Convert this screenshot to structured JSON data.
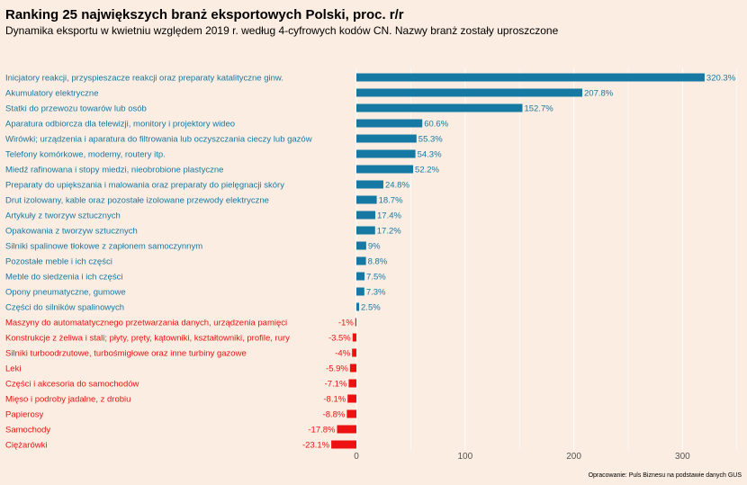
{
  "header": {
    "title": "Ranking 25 największych branż eksportowych Polski, proc. r/r",
    "subtitle": "Dynamika eksportu w kwietniu względem 2019 r. według 4-cyfrowych kodów CN. Nazwy branż zostały uproszczone"
  },
  "caption": "Opracowanie: Puls Biznesu na podstawie danych GUS",
  "colors": {
    "positive": "#1579a3",
    "negative": "#ee1111",
    "background": "#fbede1",
    "grid": "#ffffff"
  },
  "chart_data": {
    "type": "bar",
    "orientation": "horizontal",
    "title": "Ranking 25 największych branż eksportowych Polski, proc. r/r",
    "subtitle": "Dynamika eksportu w kwietniu względem 2019 r. według 4-cyfrowych kodów CN. Nazwy branż zostały uproszczone",
    "xlabel": "",
    "ylabel": "",
    "xlim": [
      -25,
      340
    ],
    "xticks": [
      0,
      100,
      200,
      300
    ],
    "grid": true,
    "legend": "none",
    "categories": [
      "Inicjatory reakcji, przyspieszacze reakcji oraz preparaty katalityczne ginw.",
      "Akumulatory elektryczne",
      "Statki do przewozu towarów lub osób",
      "Aparatura odbiorcza dla telewizji, monitory i projektory wideo",
      "Wirówki; urządzenia i aparatura do filtrowania lub oczyszczania cieczy lub gazów",
      "Telefony komórkowe, modemy, routery itp.",
      "Miedź rafinowana i stopy miedzi, nieobrobione plastyczne",
      "Preparaty do upiększania i malowania oraz preparaty do pielęgnacji skóry",
      "Drut izolowany, kable oraz pozostałe izolowane przewody elektryczne",
      "Artykuły z tworzyw sztucznych",
      "Opakowania z tworzyw sztucznych",
      "Silniki spalinowe tłokowe z zapłonem samoczynnym",
      "Pozostałe meble i ich części",
      "Meble do siedzenia i ich części",
      "Opony pneumatyczne, gumowe",
      "Części do silników spalinowych",
      "Maszyny do automatatycznego przetwarzania danych, urządzenia pamięci",
      "Konstrukcje z żeliwa i stali; płyty, pręty, kątowniki, kształtowniki, profile, rury",
      "Silniki turboodrzutowe, turbośmigłowe oraz inne turbiny gazowe",
      "Leki",
      "Części i akcesoria do samochodów",
      "Mięso i podroby jadalne, z drobiu",
      "Papierosy",
      "Samochody",
      "Ciężarówki"
    ],
    "values": [
      320.3,
      207.8,
      152.7,
      60.6,
      55.3,
      54.3,
      52.2,
      24.8,
      18.7,
      17.4,
      17.2,
      9,
      8.8,
      7.5,
      7.3,
      2.5,
      -1,
      -3.5,
      -4,
      -5.9,
      -7.1,
      -8.1,
      -8.8,
      -17.8,
      -23.1
    ],
    "value_labels": [
      "320.3%",
      "207.8%",
      "152.7%",
      "60.6%",
      "55.3%",
      "54.3%",
      "52.2%",
      "24.8%",
      "18.7%",
      "17.4%",
      "17.2%",
      "9%",
      "8.8%",
      "7.5%",
      "7.3%",
      "2.5%",
      "-1%",
      "-3.5%",
      "-4%",
      "-5.9%",
      "-7.1%",
      "-8.1%",
      "-8.8%",
      "-17.8%",
      "-23.1%"
    ]
  }
}
